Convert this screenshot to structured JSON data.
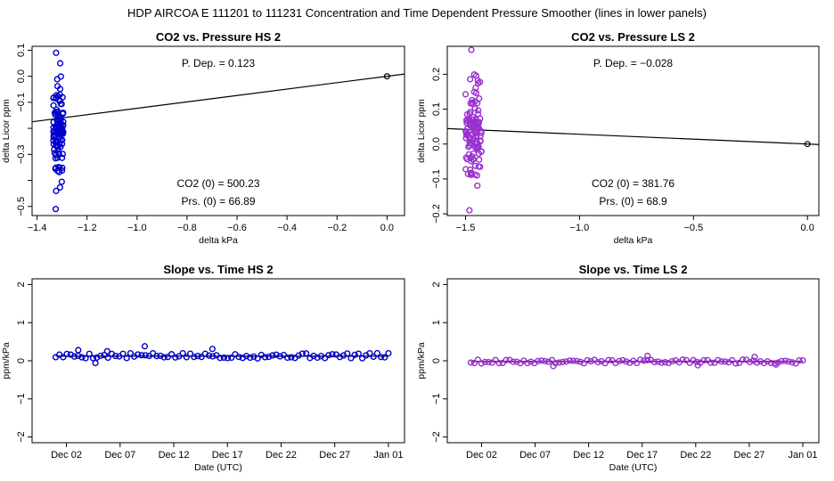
{
  "suptitle": "HDP    AIRCOA E    111201  to  111231    Concentration and Time Dependent Pressure Smoother (lines in lower panels)",
  "colors": {
    "hs": "#0000cc",
    "ls": "#9b30d0",
    "line": "#000000"
  },
  "chart_data": [
    {
      "id": "p1",
      "type": "scatter",
      "title": "CO2 vs. Pressure HS 2",
      "xlabel": "delta kPa",
      "ylabel": "delta Licor ppm",
      "xlim": [
        -1.42,
        0.07
      ],
      "ylim": [
        -0.535,
        0.115
      ],
      "xticks": [
        -1.4,
        -1.2,
        -1.0,
        -0.8,
        -0.6,
        -0.4,
        -0.2,
        0.0
      ],
      "xtick_labels": [
        "−1.4",
        "−1.2",
        "−1.0",
        "−0.8",
        "−0.6",
        "−0.4",
        "−0.2",
        "0.0"
      ],
      "yticks": [
        -0.5,
        -0.4,
        -0.3,
        -0.2,
        -0.1,
        0.0,
        0.1
      ],
      "ytick_labels": [
        "−0.5",
        "",
        "−0.3",
        "",
        "−0.1",
        "0.0",
        "0.1"
      ],
      "color": "hs",
      "fit_line": {
        "slope": 0.123,
        "intercept": 0.0,
        "x_from": -1.42,
        "x_to": 0.07
      },
      "origin_point": [
        0.0,
        0.0
      ],
      "cluster": {
        "x_center": -1.315,
        "x_spread": 0.02,
        "y_min": -0.51,
        "y_max": 0.09,
        "count": 110,
        "seed": 11
      },
      "annotations": {
        "p_dep": "P. Dep. =  0.123",
        "co2_0": "CO2 (0) =  500.23",
        "prs_0": "Prs. (0) =  66.89"
      }
    },
    {
      "id": "p2",
      "type": "scatter",
      "title": "CO2 vs. Pressure LS 2",
      "xlabel": "delta kPa",
      "ylabel": "delta Licor ppm",
      "xlim": [
        -1.58,
        0.05
      ],
      "ylim": [
        -0.205,
        0.28
      ],
      "xticks": [
        -1.5,
        -1.0,
        -0.5,
        0.0
      ],
      "xtick_labels": [
        "−1.5",
        "−1.0",
        "−0.5",
        "0.0"
      ],
      "yticks": [
        -0.2,
        -0.1,
        0.0,
        0.1,
        0.2
      ],
      "ytick_labels": [
        "−0.2",
        "−0.1",
        "0.0",
        "0.1",
        "0.2"
      ],
      "color": "ls",
      "fit_line": {
        "slope": -0.028,
        "intercept": 0.0,
        "x_from": -1.58,
        "x_to": 0.05
      },
      "origin_point": [
        0.0,
        0.0
      ],
      "cluster": {
        "x_center": -1.465,
        "x_spread": 0.035,
        "y_min": -0.19,
        "y_max": 0.27,
        "count": 120,
        "seed": 23
      },
      "annotations": {
        "p_dep": "P. Dep. =  −0.028",
        "co2_0": "CO2 (0) =  381.76",
        "prs_0": "Prs. (0) =  68.9"
      }
    },
    {
      "id": "p3",
      "type": "scatter",
      "title": "Slope vs. Time HS 2",
      "xlabel": "Date (UTC)",
      "ylabel": "ppm/kPa",
      "xlim": [
        -2.2,
        32.5
      ],
      "ylim": [
        -2.15,
        2.15
      ],
      "xticks": [
        1,
        6,
        11,
        16,
        21,
        26,
        31
      ],
      "xtick_labels": [
        "Dec 02",
        "Dec 07",
        "Dec 12",
        "Dec 17",
        "Dec 22",
        "Dec 27",
        "Jan 01"
      ],
      "yticks": [
        -2,
        -1,
        0,
        1,
        2
      ],
      "ytick_labels": [
        "−2",
        "−1",
        "0",
        "1",
        "2"
      ],
      "color": "hs",
      "smoother_level": 0.12,
      "series": {
        "x_start": 0,
        "x_end": 31,
        "count": 90,
        "mean": 0.13,
        "noise": 0.07,
        "seed": 5,
        "outliers": [
          [
            2.1,
            0.28
          ],
          [
            4.8,
            0.25
          ],
          [
            8.3,
            0.38
          ],
          [
            14.6,
            0.31
          ],
          [
            3.7,
            -0.06
          ]
        ]
      }
    },
    {
      "id": "p4",
      "type": "scatter",
      "title": "Slope vs. Time LS 2",
      "xlabel": "Date (UTC)",
      "ylabel": "ppm/kPa",
      "xlim": [
        -2.2,
        32.5
      ],
      "ylim": [
        -2.15,
        2.15
      ],
      "xticks": [
        1,
        6,
        11,
        16,
        21,
        26,
        31
      ],
      "xtick_labels": [
        "Dec 02",
        "Dec 07",
        "Dec 12",
        "Dec 17",
        "Dec 22",
        "Dec 27",
        "Jan 01"
      ],
      "yticks": [
        -2,
        -1,
        0,
        1,
        2
      ],
      "ytick_labels": [
        "−2",
        "−1",
        "0",
        "1",
        "2"
      ],
      "color": "ls",
      "smoother_level": -0.02,
      "series": {
        "x_start": 0,
        "x_end": 31,
        "count": 95,
        "mean": -0.02,
        "noise": 0.05,
        "seed": 9,
        "outliers": [
          [
            16.5,
            0.13
          ],
          [
            26.5,
            0.1
          ],
          [
            7.7,
            -0.14
          ],
          [
            21.2,
            -0.12
          ],
          [
            28.5,
            -0.1
          ]
        ]
      }
    }
  ]
}
